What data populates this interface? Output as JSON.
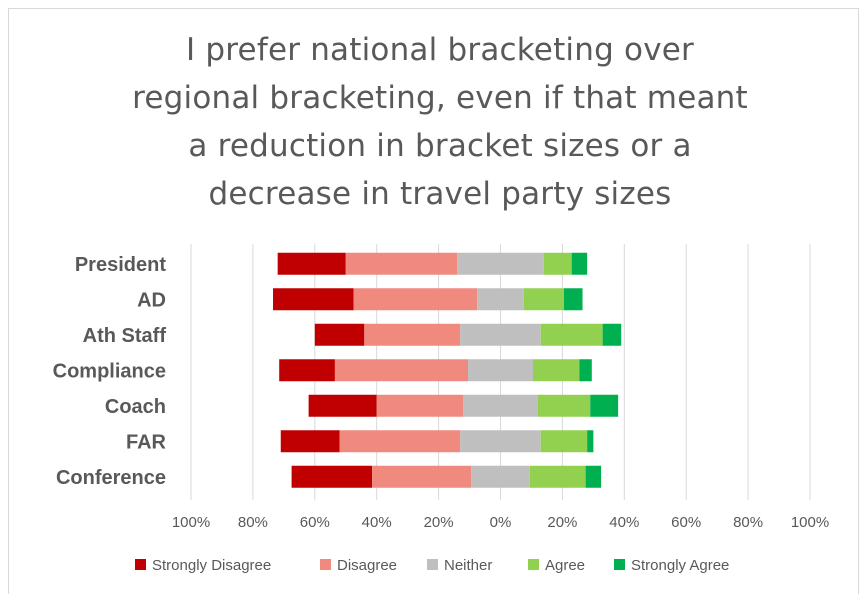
{
  "chart_data": {
    "type": "bar",
    "orientation": "horizontal",
    "stacked": "diverging",
    "title": "I prefer national bracketing over\nregional bracketing, even if that meant\na reduction in bracket sizes or a\ndecrease in travel party sizes",
    "categories": [
      "President",
      "AD",
      "Ath Staff",
      "Compliance",
      "Coach",
      "FAR",
      "Conference"
    ],
    "xticks": [
      "100%",
      "80%",
      "60%",
      "40%",
      "20%",
      "0%",
      "20%",
      "40%",
      "60%",
      "80%",
      "100%"
    ],
    "xlim": [
      -100,
      100
    ],
    "grid": true,
    "legend_position": "bottom",
    "series": [
      {
        "name": "Strongly Disagree",
        "color": "#c00000",
        "values": [
          22,
          26,
          16,
          18,
          22,
          19,
          26
        ]
      },
      {
        "name": "Disagree",
        "color": "#f08a7e",
        "values": [
          36,
          40,
          31,
          43,
          28,
          39,
          32
        ]
      },
      {
        "name": "Neither",
        "color": "#bfbfbf",
        "values": [
          28,
          15,
          26,
          21,
          24,
          26,
          19
        ]
      },
      {
        "name": "Agree",
        "color": "#92d050",
        "values": [
          9,
          13,
          20,
          15,
          17,
          15,
          18
        ]
      },
      {
        "name": "Strongly Agree",
        "color": "#00b050",
        "values": [
          5,
          6,
          6,
          4,
          9,
          2,
          5
        ]
      }
    ]
  }
}
